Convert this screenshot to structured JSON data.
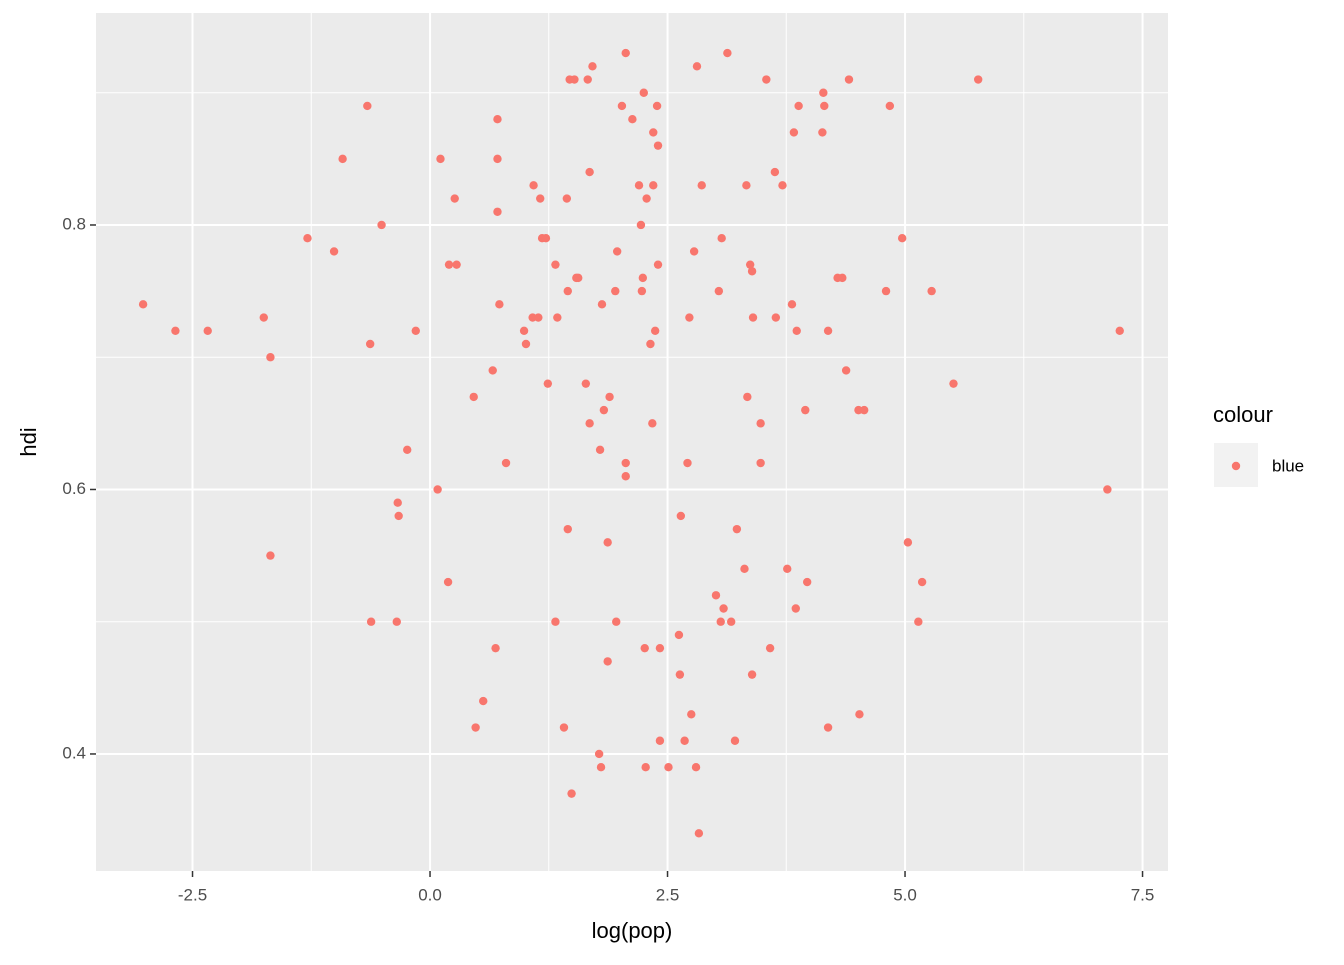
{
  "chart_data": {
    "type": "scatter",
    "x_label": "log(pop)",
    "y_label": "hdi",
    "legend": {
      "title": "colour",
      "position": "right"
    },
    "xlim": [
      -3.516,
      7.768
    ],
    "ylim": [
      0.3115,
      0.9603
    ],
    "xticks": [
      -2.5,
      {
        "value": 0,
        "label": "0.0"
      },
      2.5,
      {
        "value": 5,
        "label": "5.0"
      },
      7.5
    ],
    "yticks": [
      0.4,
      0.6,
      0.8
    ],
    "x_minor_ticks": [
      -1.25,
      1.25,
      3.75,
      6.25
    ],
    "y_minor_ticks": [
      0.5,
      0.7,
      0.9
    ],
    "grid": true,
    "series": [
      {
        "name": "blue",
        "color": "#F8766D",
        "x": [
          -3.02,
          -2.68,
          -2.34,
          -1.75,
          -1.68,
          -1.68,
          -1.29,
          -1.01,
          -0.92,
          -0.66,
          -0.63,
          -0.62,
          -0.51,
          -0.34,
          -0.33,
          -0.35,
          -0.24,
          -0.15,
          0.08,
          0.11,
          0.19,
          0.2,
          0.26,
          0.28,
          0.46,
          0.48,
          0.56,
          0.66,
          0.69,
          0.71,
          0.71,
          0.71,
          0.73,
          0.8,
          0.99,
          1.01,
          1.09,
          1.08,
          1.14,
          1.16,
          1.18,
          1.22,
          1.24,
          1.32,
          1.32,
          1.34,
          1.41,
          1.44,
          1.45,
          1.45,
          1.47,
          1.52,
          1.49,
          1.54,
          1.56,
          1.64,
          1.66,
          1.68,
          1.68,
          1.71,
          1.78,
          1.8,
          1.79,
          1.81,
          1.83,
          1.87,
          1.87,
          1.89,
          1.95,
          1.96,
          1.97,
          2.02,
          2.06,
          2.06,
          2.06,
          2.13,
          2.2,
          2.22,
          2.23,
          2.24,
          2.25,
          2.26,
          2.27,
          2.28,
          2.32,
          2.34,
          2.35,
          2.35,
          2.37,
          2.39,
          2.4,
          2.4,
          2.42,
          2.42,
          2.51,
          2.62,
          2.63,
          2.64,
          2.68,
          2.71,
          2.73,
          2.75,
          2.78,
          2.8,
          2.81,
          2.83,
          2.86,
          3.01,
          3.04,
          3.06,
          3.07,
          3.09,
          3.13,
          3.17,
          3.21,
          3.23,
          3.31,
          3.33,
          3.34,
          3.37,
          3.39,
          3.39,
          3.4,
          3.48,
          3.48,
          3.54,
          3.58,
          3.63,
          3.64,
          3.71,
          3.76,
          3.81,
          3.83,
          3.85,
          3.86,
          3.88,
          3.95,
          3.97,
          4.14,
          4.13,
          4.15,
          4.19,
          4.19,
          4.29,
          4.34,
          4.38,
          4.41,
          4.51,
          4.52,
          4.57,
          4.8,
          4.84,
          4.97,
          5.03,
          5.14,
          5.18,
          5.28,
          5.51,
          5.77,
          7.13,
          7.26
        ],
        "values": [
          0.74,
          0.72,
          0.72,
          0.73,
          0.7,
          0.55,
          0.79,
          0.78,
          0.85,
          0.89,
          0.71,
          0.5,
          0.8,
          0.59,
          0.58,
          0.5,
          0.63,
          0.72,
          0.6,
          0.85,
          0.53,
          0.77,
          0.82,
          0.77,
          0.67,
          0.42,
          0.44,
          0.69,
          0.48,
          0.85,
          0.88,
          0.81,
          0.74,
          0.62,
          0.72,
          0.71,
          0.83,
          0.73,
          0.73,
          0.82,
          0.79,
          0.79,
          0.68,
          0.5,
          0.77,
          0.73,
          0.42,
          0.82,
          0.75,
          0.57,
          0.91,
          0.91,
          0.37,
          0.76,
          0.76,
          0.68,
          0.91,
          0.65,
          0.84,
          0.92,
          0.4,
          0.39,
          0.63,
          0.74,
          0.66,
          0.56,
          0.47,
          0.67,
          0.75,
          0.5,
          0.78,
          0.89,
          0.93,
          0.61,
          0.62,
          0.88,
          0.83,
          0.8,
          0.75,
          0.76,
          0.9,
          0.48,
          0.39,
          0.82,
          0.71,
          0.65,
          0.83,
          0.87,
          0.72,
          0.89,
          0.86,
          0.77,
          0.48,
          0.41,
          0.39,
          0.49,
          0.46,
          0.58,
          0.41,
          0.62,
          0.73,
          0.43,
          0.78,
          0.39,
          0.92,
          0.34,
          0.83,
          0.52,
          0.75,
          0.5,
          0.79,
          0.51,
          0.93,
          0.5,
          0.41,
          0.57,
          0.54,
          0.83,
          0.67,
          0.77,
          0.765,
          0.46,
          0.73,
          0.65,
          0.62,
          0.91,
          0.48,
          0.84,
          0.73,
          0.83,
          0.54,
          0.74,
          0.87,
          0.51,
          0.72,
          0.89,
          0.66,
          0.53,
          0.9,
          0.87,
          0.89,
          0.72,
          0.42,
          0.76,
          0.76,
          0.69,
          0.91,
          0.66,
          0.43,
          0.66,
          0.75,
          0.89,
          0.79,
          0.56,
          0.5,
          0.53,
          0.75,
          0.68,
          0.91,
          0.6,
          0.72
        ]
      }
    ]
  }
}
